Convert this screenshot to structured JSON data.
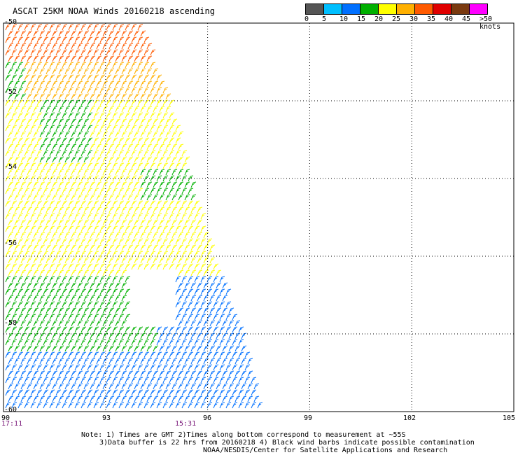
{
  "title": "ASCAT 25KM NOAA Winds 20160218 ascending",
  "legend": {
    "bins": [
      {
        "label": "0",
        "color": "#555555"
      },
      {
        "label": "5",
        "color": "#00bfff"
      },
      {
        "label": "10",
        "color": "#0070ff"
      },
      {
        "label": "15",
        "color": "#00b000"
      },
      {
        "label": "20",
        "color": "#ffff00"
      },
      {
        "label": "25",
        "color": "#ffb000"
      },
      {
        "label": "30",
        "color": "#ff5a00"
      },
      {
        "label": "35",
        "color": "#e00000"
      },
      {
        "label": "40",
        "color": "#7a3a10"
      },
      {
        "label": "45",
        "color": "#ff00ff"
      },
      {
        "label": ">50 knots",
        "color": "#5a0090"
      }
    ]
  },
  "axes": {
    "lon_labels": [
      "90",
      "93",
      "96",
      "99",
      "102",
      "105"
    ],
    "lat_labels": [
      "-50",
      "-52",
      "-54",
      "-56",
      "-58",
      "-60"
    ]
  },
  "times": [
    "17:11",
    "15:31"
  ],
  "notes": [
    "Note: 1) Times are GMT 2)Times along bottom correspond to measurement at ~55S",
    "3)Data buffer is 22 hrs from 20160218 4) Black wind barbs indicate possible contamination",
    "NOAA/NESDIS/Center for Satellite Applications and Research"
  ],
  "chart_data": {
    "type": "map",
    "region": {
      "lon": [
        90,
        105
      ],
      "lat": [
        -60,
        -50
      ]
    },
    "grid_lon": [
      90,
      93,
      96,
      99,
      102,
      105
    ],
    "grid_lat": [
      -50,
      -52,
      -54,
      -56,
      -58,
      -60
    ],
    "swath_edge_lon": [
      [
        -50,
        94.0
      ],
      [
        -52,
        94.9
      ],
      [
        -54,
        95.5
      ],
      [
        -56,
        96.2
      ],
      [
        -58,
        97.0
      ],
      [
        -60,
        97.6
      ]
    ],
    "wind_speed_zones_knots": [
      {
        "lat": [
          -51,
          -50
        ],
        "speed": 30
      },
      {
        "lat": [
          -52,
          -51
        ],
        "speed": 25
      },
      {
        "lat": [
          -54.5,
          -52
        ],
        "speed": 20
      },
      {
        "lat": [
          -56.5,
          -54.5
        ],
        "speed": 20
      },
      {
        "lat": [
          -58.5,
          -56.5
        ],
        "speed": 15
      },
      {
        "lat": [
          -60,
          -58.5
        ],
        "speed": 10
      }
    ]
  }
}
